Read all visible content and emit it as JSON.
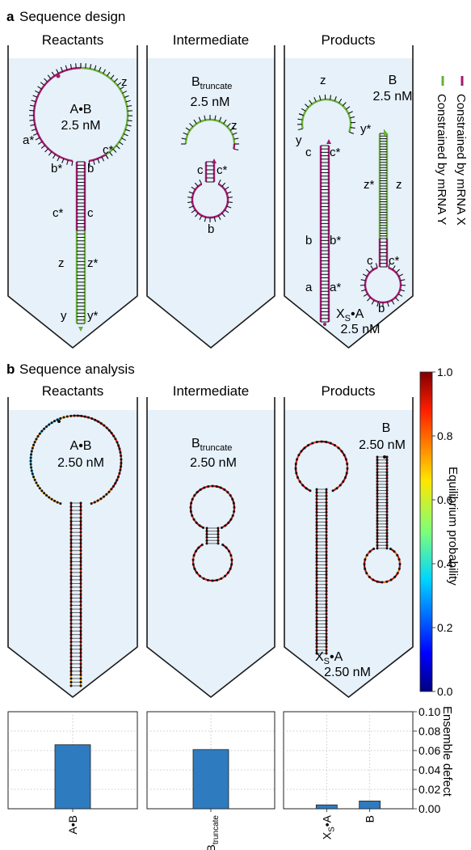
{
  "panel_a": {
    "letter": "a",
    "title": "Sequence design",
    "headers": [
      "Reactants",
      "Intermediate",
      "Products"
    ],
    "tube1": {
      "complex": "A•B",
      "conc": "2.5 nM",
      "labels": {
        "a_star": "a*",
        "z": "z",
        "c_star": "c*",
        "b_star": "b*",
        "b": "b",
        "c_star2": "c*",
        "c": "c",
        "z2": "z",
        "z_star": "z*",
        "y": "y",
        "y_star": "y*"
      }
    },
    "tube2": {
      "complex_main": "B",
      "complex_sub": "truncate",
      "conc": "2.5 nM",
      "labels": {
        "z": "z",
        "c": "c",
        "c_star": "c*",
        "b": "b"
      }
    },
    "tube3": {
      "complex1_main": "X",
      "complex1_sub": "S",
      "complex1_tail": "•A",
      "conc1": "2.5 nM",
      "complex2": "B",
      "conc2": "2.5 nM",
      "labels": {
        "z": "z",
        "y": "y",
        "c": "c",
        "c_star": "c*",
        "b": "b",
        "b_star": "b*",
        "a": "a",
        "a_star": "a*",
        "y_star": "y*",
        "z_star": "z*",
        "z2": "z",
        "c2": "c",
        "c_star2": "c*",
        "b2": "b"
      }
    },
    "legend": [
      {
        "label": "Constrained by mRNA X",
        "color": "#a0196e"
      },
      {
        "label": "Constrained by mRNA Y",
        "color": "#6aaf38"
      }
    ]
  },
  "panel_b": {
    "letter": "b",
    "title": "Sequence analysis",
    "headers": [
      "Reactants",
      "Intermediate",
      "Products"
    ],
    "tube1": {
      "complex": "A•B",
      "conc": "2.50 nM"
    },
    "tube2": {
      "complex_main": "B",
      "complex_sub": "truncate",
      "conc": "2.50 nM"
    },
    "tube3": {
      "complex1_main": "X",
      "complex1_sub": "S",
      "complex1_tail": "•A",
      "conc1": "2.50 nM",
      "complex2": "B",
      "conc2": "2.50 nM"
    },
    "colorbar": {
      "label": "Equilibrium probability",
      "ticks": [
        "1.0",
        "0.8",
        "0.6",
        "0.4",
        "0.2",
        "0.0"
      ]
    }
  },
  "colors": {
    "tube_fill": "#e6f1fa",
    "mrna_x": "#a0196e",
    "mrna_y": "#6aaf38",
    "bar": "#2e7bbf"
  },
  "chart_data": {
    "type": "bar",
    "ylabel": "Ensemble defect",
    "ylim": [
      0,
      0.1
    ],
    "yticks": [
      "0.10",
      "0.08",
      "0.06",
      "0.04",
      "0.02",
      "0.00"
    ],
    "groups": [
      {
        "categories": [
          {
            "main": "A•B",
            "sub": "",
            "tail": ""
          }
        ],
        "values": [
          0.066
        ]
      },
      {
        "categories": [
          {
            "main": "B",
            "sub": "truncate",
            "tail": ""
          }
        ],
        "values": [
          0.061
        ]
      },
      {
        "categories": [
          {
            "main": "X",
            "sub": "S",
            "tail": "•A"
          },
          {
            "main": "B",
            "sub": "",
            "tail": ""
          }
        ],
        "values": [
          0.004,
          0.008
        ]
      }
    ]
  }
}
